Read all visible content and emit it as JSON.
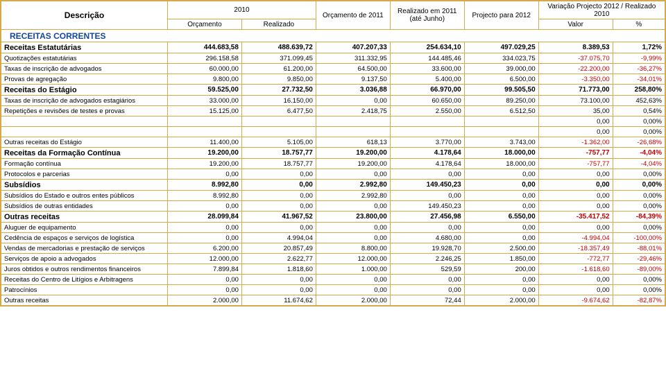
{
  "headers": {
    "description": "Descrição",
    "y2010": "2010",
    "orcamento": "Orçamento",
    "realizado": "Realizado",
    "orc2011": "Orçamento de 2011",
    "real2011": "Realizado em 2011 (até Junho)",
    "proj2012": "Projecto para 2012",
    "variacao": "Variação Projecto 2012 / Realizado 2010",
    "valor": "Valor",
    "pct": "%"
  },
  "colors": {
    "border": "#d4a947",
    "section": "#1546a0",
    "negative": "#c00000"
  },
  "section_title": "RECEITAS CORRENTES",
  "rows": [
    {
      "t": "g",
      "label": "Receitas Estatutárias",
      "c": [
        "444.683,58",
        "488.639,72",
        "407.207,33",
        "254.634,10",
        "497.029,25",
        "8.389,53",
        "1,72%"
      ],
      "neg": [
        false,
        false,
        false,
        false,
        false,
        false,
        false
      ]
    },
    {
      "t": "r",
      "label": "Quotizações estatutárias",
      "c": [
        "296.158,58",
        "371.099,45",
        "311.332,95",
        "144.485,46",
        "334.023,75",
        "-37.075,70",
        "-9,99%"
      ],
      "neg": [
        false,
        false,
        false,
        false,
        false,
        true,
        true
      ]
    },
    {
      "t": "r",
      "label": "Taxas de inscrição de advogados",
      "c": [
        "60.000,00",
        "61.200,00",
        "64.500,00",
        "33.600,00",
        "39.000,00",
        "-22.200,00",
        "-36,27%"
      ],
      "neg": [
        false,
        false,
        false,
        false,
        false,
        true,
        true
      ]
    },
    {
      "t": "r",
      "label": "Provas de agregação",
      "c": [
        "9.800,00",
        "9.850,00",
        "9.137,50",
        "5.400,00",
        "6.500,00",
        "-3.350,00",
        "-34,01%"
      ],
      "neg": [
        false,
        false,
        false,
        false,
        false,
        true,
        true
      ]
    },
    {
      "t": "g",
      "label": "Receitas do Estágio",
      "c": [
        "59.525,00",
        "27.732,50",
        "3.036,88",
        "66.970,00",
        "99.505,50",
        "71.773,00",
        "258,80%"
      ],
      "neg": [
        false,
        false,
        false,
        false,
        false,
        false,
        false
      ]
    },
    {
      "t": "r",
      "label": "Taxas de inscrição de advogados estagiários",
      "c": [
        "33.000,00",
        "16.150,00",
        "0,00",
        "60.650,00",
        "89.250,00",
        "73.100,00",
        "452,63%"
      ],
      "neg": [
        false,
        false,
        false,
        false,
        false,
        false,
        false
      ]
    },
    {
      "t": "r",
      "label": "Repetições e revisões de testes e provas",
      "c": [
        "15.125,00",
        "6.477,50",
        "2.418,75",
        "2.550,00",
        "6.512,50",
        "35,00",
        "0,54%"
      ],
      "neg": [
        false,
        false,
        false,
        false,
        false,
        false,
        false
      ]
    },
    {
      "t": "r",
      "label": "",
      "c": [
        "",
        "",
        "",
        "",
        "",
        "0,00",
        "0,00%"
      ],
      "neg": [
        false,
        false,
        false,
        false,
        false,
        false,
        false
      ]
    },
    {
      "t": "r",
      "label": "",
      "c": [
        "",
        "",
        "",
        "",
        "",
        "0,00",
        "0,00%"
      ],
      "neg": [
        false,
        false,
        false,
        false,
        false,
        false,
        false
      ]
    },
    {
      "t": "r",
      "label": "Outras receitas do Estágio",
      "c": [
        "11.400,00",
        "5.105,00",
        "618,13",
        "3.770,00",
        "3.743,00",
        "-1.362,00",
        "-26,68%"
      ],
      "neg": [
        false,
        false,
        false,
        false,
        false,
        true,
        true
      ]
    },
    {
      "t": "g",
      "label": "Receitas da Formação Contínua",
      "c": [
        "19.200,00",
        "18.757,77",
        "19.200,00",
        "4.178,64",
        "18.000,00",
        "-757,77",
        "-4,04%"
      ],
      "neg": [
        false,
        false,
        false,
        false,
        false,
        true,
        true
      ]
    },
    {
      "t": "r",
      "label": "Formação contínua",
      "c": [
        "19.200,00",
        "18.757,77",
        "19.200,00",
        "4.178,64",
        "18.000,00",
        "-757,77",
        "-4,04%"
      ],
      "neg": [
        false,
        false,
        false,
        false,
        false,
        true,
        true
      ]
    },
    {
      "t": "r",
      "label": "Protocolos e parcerias",
      "c": [
        "0,00",
        "0,00",
        "0,00",
        "0,00",
        "0,00",
        "0,00",
        "0,00%"
      ],
      "neg": [
        false,
        false,
        false,
        false,
        false,
        false,
        false
      ]
    },
    {
      "t": "g",
      "label": "Subsídios",
      "c": [
        "8.992,80",
        "0,00",
        "2.992,80",
        "149.450,23",
        "0,00",
        "0,00",
        "0,00%"
      ],
      "neg": [
        false,
        false,
        false,
        false,
        false,
        false,
        false
      ]
    },
    {
      "t": "r",
      "label": "Subsídios do Estado e outros entes públicos",
      "c": [
        "8.992,80",
        "0,00",
        "2.992,80",
        "0,00",
        "0,00",
        "0,00",
        "0,00%"
      ],
      "neg": [
        false,
        false,
        false,
        false,
        false,
        false,
        false
      ]
    },
    {
      "t": "r",
      "label": "Subsídios de outras entidades",
      "c": [
        "0,00",
        "0,00",
        "0,00",
        "149.450,23",
        "0,00",
        "0,00",
        "0,00%"
      ],
      "neg": [
        false,
        false,
        false,
        false,
        false,
        false,
        false
      ]
    },
    {
      "t": "g",
      "label": "Outras receitas",
      "c": [
        "28.099,84",
        "41.967,52",
        "23.800,00",
        "27.456,98",
        "6.550,00",
        "-35.417,52",
        "-84,39%"
      ],
      "neg": [
        false,
        false,
        false,
        false,
        false,
        true,
        true
      ]
    },
    {
      "t": "r",
      "label": "Aluguer de equipamento",
      "c": [
        "0,00",
        "0,00",
        "0,00",
        "0,00",
        "0,00",
        "0,00",
        "0,00%"
      ],
      "neg": [
        false,
        false,
        false,
        false,
        false,
        false,
        false
      ]
    },
    {
      "t": "r",
      "label": "Cedência de espaços e serviços de logística",
      "c": [
        "0,00",
        "4.994,04",
        "0,00",
        "4.680,00",
        "0,00",
        "-4.994,04",
        "-100,00%"
      ],
      "neg": [
        false,
        false,
        false,
        false,
        false,
        true,
        true
      ]
    },
    {
      "t": "r",
      "label": "Vendas de mercadorias e prestação de serviços",
      "c": [
        "6.200,00",
        "20.857,49",
        "8.800,00",
        "19.928,70",
        "2.500,00",
        "-18.357,49",
        "-88,01%"
      ],
      "neg": [
        false,
        false,
        false,
        false,
        false,
        true,
        true
      ]
    },
    {
      "t": "r",
      "label": "Serviços de apoio a advogados",
      "c": [
        "12.000,00",
        "2.622,77",
        "12.000,00",
        "2.246,25",
        "1.850,00",
        "-772,77",
        "-29,46%"
      ],
      "neg": [
        false,
        false,
        false,
        false,
        false,
        true,
        true
      ]
    },
    {
      "t": "r",
      "label": "Juros obtidos e outros rendimentos financeiros",
      "c": [
        "7.899,84",
        "1.818,60",
        "1.000,00",
        "529,59",
        "200,00",
        "-1.618,60",
        "-89,00%"
      ],
      "neg": [
        false,
        false,
        false,
        false,
        false,
        true,
        true
      ]
    },
    {
      "t": "r",
      "label": "Receitas do Centro de Litígios e Arbitragens",
      "c": [
        "0,00",
        "0,00",
        "0,00",
        "0,00",
        "0,00",
        "0,00",
        "0,00%"
      ],
      "neg": [
        false,
        false,
        false,
        false,
        false,
        false,
        false
      ]
    },
    {
      "t": "r",
      "label": "Patrocínios",
      "c": [
        "0,00",
        "0,00",
        "0,00",
        "0,00",
        "0,00",
        "0,00",
        "0,00%"
      ],
      "neg": [
        false,
        false,
        false,
        false,
        false,
        false,
        false
      ]
    },
    {
      "t": "r",
      "label": "Outras receitas",
      "c": [
        "2.000,00",
        "11.674,62",
        "2.000,00",
        "72,44",
        "2.000,00",
        "-9.674,62",
        "-82,87%"
      ],
      "neg": [
        false,
        false,
        false,
        false,
        false,
        true,
        true
      ]
    }
  ]
}
